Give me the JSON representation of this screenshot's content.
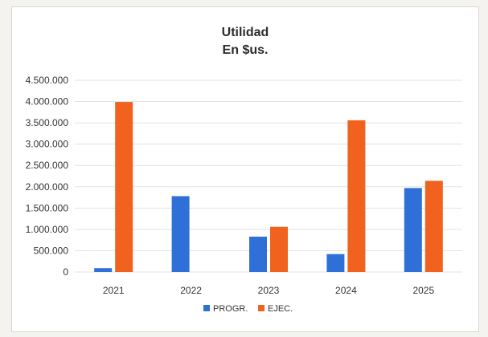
{
  "chart_data": {
    "type": "bar",
    "title": "Utilidad",
    "subtitle": "En $us.",
    "categories": [
      "2021",
      "2022",
      "2023",
      "2024",
      "2025"
    ],
    "series": [
      {
        "name": "PROGR.",
        "color": "#2e6fd8",
        "values": [
          90000,
          1780000,
          830000,
          420000,
          1970000
        ]
      },
      {
        "name": "EJEC.",
        "color": "#f0621e",
        "values": [
          3990000,
          0,
          1060000,
          3560000,
          2140000
        ]
      }
    ],
    "ylim": [
      0,
      4500000
    ],
    "yticks": [
      "0",
      "500.000",
      "1.000.000",
      "1.500.000",
      "2.000.000",
      "2.500.000",
      "3.000.000",
      "3.500.000",
      "4.000.000",
      "4.500.000"
    ],
    "ytick_values": [
      0,
      500000,
      1000000,
      1500000,
      2000000,
      2500000,
      3000000,
      3500000,
      4000000,
      4500000
    ],
    "grid": true,
    "legend_position": "bottom"
  }
}
